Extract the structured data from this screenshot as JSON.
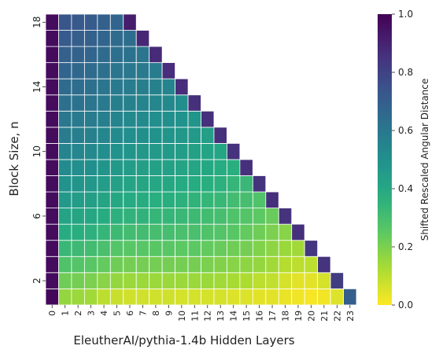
{
  "chart_data": {
    "type": "heatmap",
    "title": "",
    "xlabel": "EleutherAI/pythia-1.4b Hidden Layers",
    "ylabel": "Block Size, n",
    "x_ticks": [
      0,
      1,
      2,
      3,
      4,
      5,
      6,
      7,
      8,
      9,
      10,
      11,
      12,
      13,
      14,
      15,
      16,
      17,
      18,
      19,
      20,
      21,
      22,
      23
    ],
    "y_ticks": [
      2,
      6,
      10,
      14,
      18
    ],
    "n_min": 1,
    "n_max": 18,
    "layers": 24,
    "colorbar": {
      "label": "Shifted Rescaled Angular Distance",
      "range": [
        0.0,
        1.0
      ],
      "ticks": [
        0.0,
        0.2,
        0.4,
        0.6,
        0.8,
        1.0
      ],
      "tick_labels": [
        "0.0",
        "0.2",
        "0.4",
        "0.6",
        "0.8",
        "1.0"
      ],
      "colormap": "viridis_r"
    },
    "rows": [
      {
        "n": 1,
        "values": [
          0.98,
          0.16,
          0.15,
          0.14,
          0.1,
          0.08,
          0.07,
          0.07,
          0.07,
          0.07,
          0.06,
          0.06,
          0.06,
          0.06,
          0.05,
          0.05,
          0.04,
          0.04,
          0.03,
          0.02,
          0.01,
          0.02,
          0.05,
          0.7
        ]
      },
      {
        "n": 2,
        "values": [
          0.97,
          0.22,
          0.21,
          0.2,
          0.18,
          0.16,
          0.15,
          0.15,
          0.15,
          0.15,
          0.15,
          0.15,
          0.15,
          0.14,
          0.13,
          0.12,
          0.1,
          0.09,
          0.06,
          0.04,
          0.04,
          0.06,
          0.82
        ]
      },
      {
        "n": 3,
        "values": [
          0.97,
          0.28,
          0.27,
          0.26,
          0.24,
          0.22,
          0.21,
          0.21,
          0.21,
          0.21,
          0.21,
          0.21,
          0.2,
          0.19,
          0.18,
          0.17,
          0.16,
          0.14,
          0.11,
          0.1,
          0.1,
          0.85
        ]
      },
      {
        "n": 4,
        "values": [
          0.97,
          0.33,
          0.32,
          0.31,
          0.29,
          0.27,
          0.26,
          0.26,
          0.26,
          0.26,
          0.25,
          0.25,
          0.24,
          0.23,
          0.22,
          0.21,
          0.19,
          0.17,
          0.15,
          0.14,
          0.84
        ]
      },
      {
        "n": 5,
        "values": [
          0.97,
          0.38,
          0.37,
          0.36,
          0.34,
          0.32,
          0.31,
          0.31,
          0.3,
          0.3,
          0.29,
          0.29,
          0.28,
          0.27,
          0.26,
          0.24,
          0.22,
          0.2,
          0.18,
          0.86
        ]
      },
      {
        "n": 6,
        "values": [
          0.97,
          0.42,
          0.41,
          0.4,
          0.38,
          0.36,
          0.35,
          0.35,
          0.34,
          0.34,
          0.33,
          0.32,
          0.31,
          0.3,
          0.28,
          0.27,
          0.25,
          0.23,
          0.85
        ]
      },
      {
        "n": 7,
        "values": [
          0.97,
          0.46,
          0.45,
          0.44,
          0.42,
          0.4,
          0.39,
          0.38,
          0.37,
          0.37,
          0.36,
          0.35,
          0.34,
          0.33,
          0.31,
          0.3,
          0.28,
          0.86
        ]
      },
      {
        "n": 8,
        "values": [
          0.97,
          0.49,
          0.48,
          0.47,
          0.45,
          0.43,
          0.42,
          0.41,
          0.4,
          0.4,
          0.39,
          0.38,
          0.37,
          0.36,
          0.34,
          0.33,
          0.85
        ]
      },
      {
        "n": 9,
        "values": [
          0.97,
          0.52,
          0.51,
          0.5,
          0.48,
          0.46,
          0.45,
          0.44,
          0.43,
          0.43,
          0.42,
          0.41,
          0.4,
          0.38,
          0.37,
          0.86
        ]
      },
      {
        "n": 10,
        "values": [
          0.97,
          0.55,
          0.54,
          0.53,
          0.51,
          0.49,
          0.48,
          0.47,
          0.46,
          0.46,
          0.45,
          0.43,
          0.42,
          0.41,
          0.85
        ]
      },
      {
        "n": 11,
        "values": [
          0.97,
          0.58,
          0.57,
          0.56,
          0.54,
          0.52,
          0.51,
          0.5,
          0.49,
          0.48,
          0.47,
          0.46,
          0.44,
          0.86
        ]
      },
      {
        "n": 12,
        "values": [
          0.97,
          0.6,
          0.59,
          0.58,
          0.57,
          0.55,
          0.53,
          0.52,
          0.51,
          0.5,
          0.49,
          0.48,
          0.86
        ]
      },
      {
        "n": 13,
        "values": [
          0.97,
          0.63,
          0.62,
          0.61,
          0.59,
          0.57,
          0.56,
          0.55,
          0.54,
          0.53,
          0.51,
          0.86
        ]
      },
      {
        "n": 14,
        "values": [
          0.97,
          0.65,
          0.64,
          0.63,
          0.61,
          0.59,
          0.58,
          0.57,
          0.56,
          0.55,
          0.87
        ]
      },
      {
        "n": 15,
        "values": [
          0.97,
          0.67,
          0.66,
          0.65,
          0.63,
          0.61,
          0.6,
          0.59,
          0.58,
          0.87
        ]
      },
      {
        "n": 16,
        "values": [
          0.97,
          0.69,
          0.68,
          0.67,
          0.65,
          0.63,
          0.62,
          0.61,
          0.88
        ]
      },
      {
        "n": 17,
        "values": [
          0.97,
          0.71,
          0.7,
          0.69,
          0.67,
          0.65,
          0.64,
          0.89
        ]
      },
      {
        "n": 18,
        "values": [
          0.97,
          0.73,
          0.72,
          0.71,
          0.69,
          0.67,
          0.92
        ]
      }
    ]
  }
}
